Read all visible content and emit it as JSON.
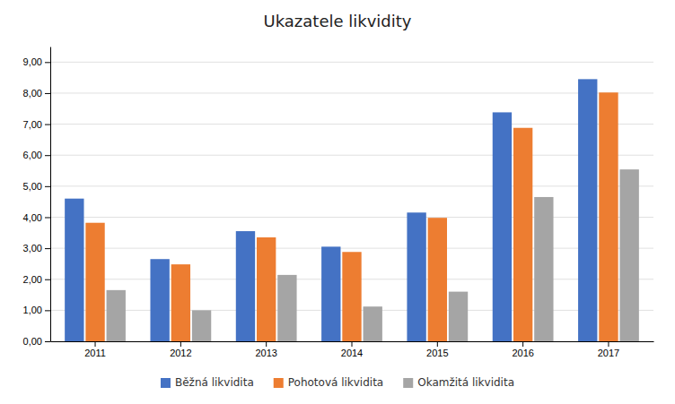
{
  "chart_data": {
    "type": "bar",
    "title": "Ukazatele likvidity",
    "categories": [
      "2011",
      "2012",
      "2013",
      "2014",
      "2015",
      "2016",
      "2017"
    ],
    "series": [
      {
        "name": "Běžná likvidita",
        "color": "#4472C4",
        "values": [
          4.6,
          2.65,
          3.55,
          3.05,
          4.15,
          7.38,
          8.45
        ]
      },
      {
        "name": "Pohotová likvidita",
        "color": "#ED7D31",
        "values": [
          3.82,
          2.48,
          3.35,
          2.88,
          3.98,
          6.88,
          8.02
        ]
      },
      {
        "name": "Okamžitá likvidita",
        "color": "#A5A5A5",
        "values": [
          1.65,
          1.0,
          2.14,
          1.12,
          1.6,
          4.65,
          5.54
        ]
      }
    ],
    "ylim": [
      0,
      9.5
    ],
    "yticks": [
      {
        "value": 0.0,
        "label": "0,00"
      },
      {
        "value": 1.0,
        "label": "1,00"
      },
      {
        "value": 2.0,
        "label": "2,00"
      },
      {
        "value": 3.0,
        "label": "3,00"
      },
      {
        "value": 4.0,
        "label": "4,00"
      },
      {
        "value": 5.0,
        "label": "5,00"
      },
      {
        "value": 6.0,
        "label": "6,00"
      },
      {
        "value": 7.0,
        "label": "7,00"
      },
      {
        "value": 8.0,
        "label": "8,00"
      },
      {
        "value": 9.0,
        "label": "9,00"
      }
    ],
    "grid": true,
    "legend": "bottom"
  }
}
